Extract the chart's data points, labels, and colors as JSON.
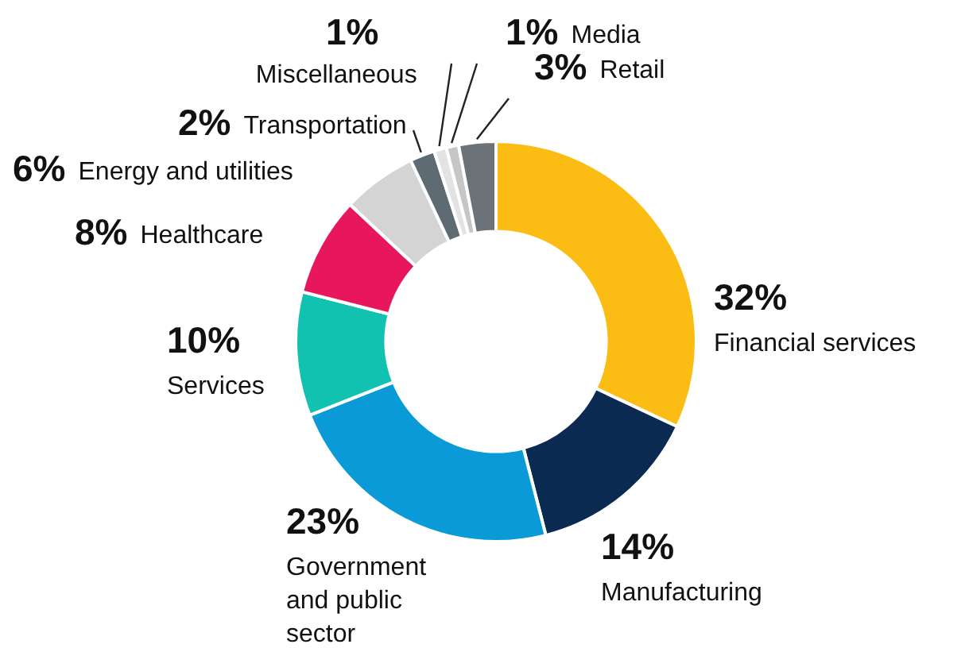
{
  "chart_data": {
    "type": "donut",
    "categories": [
      "Financial services",
      "Manufacturing",
      "Government and public sector",
      "Services",
      "Healthcare",
      "Energy and utilities",
      "Transportation",
      "Miscellaneous",
      "Media",
      "Retail"
    ],
    "values": [
      32,
      14,
      23,
      10,
      8,
      6,
      2,
      1,
      1,
      3
    ],
    "value_labels": [
      "32%",
      "14%",
      "23%",
      "10%",
      "8%",
      "6%",
      "2%",
      "1%",
      "1%",
      "3%"
    ],
    "colors": [
      "#fbbc13",
      "#0b2a52",
      "#0a9ad8",
      "#12c2b0",
      "#e8175d",
      "#d4d4d4",
      "#5e6b73",
      "#e3e3e3",
      "#c6c6c6",
      "#6b7378"
    ],
    "legend": false
  }
}
